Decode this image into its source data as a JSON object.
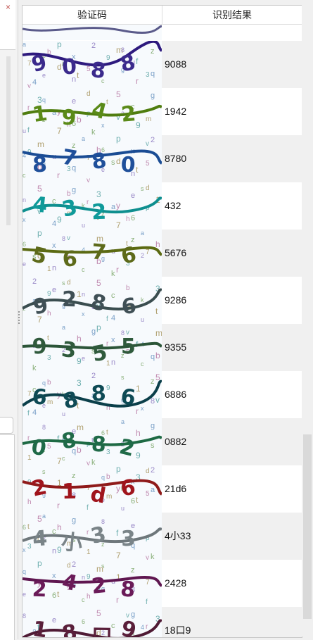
{
  "left_panel": {
    "close_glyph": "×"
  },
  "table": {
    "headers": {
      "captcha": "验证码",
      "result": "识别结果"
    },
    "rows": [
      {
        "result": "9088",
        "color": "#3b2a8c",
        "wave": "#2e1a7e"
      },
      {
        "result": "1942",
        "color": "#5a8a18",
        "wave": "#4f7d0f"
      },
      {
        "result": "8780",
        "color": "#1f4f9a",
        "wave": "#1a4c94"
      },
      {
        "result": "432",
        "color": "#0f9a9a",
        "wave": "#0e8f8f"
      },
      {
        "result": "5676",
        "color": "#5d6a1a",
        "wave": "#5b6a12"
      },
      {
        "result": "9286",
        "color": "#3f4f55",
        "wave": "#3a4d4f"
      },
      {
        "result": "9355",
        "color": "#2f5a3c",
        "wave": "#2b5538"
      },
      {
        "result": "6886",
        "color": "#0e4a55",
        "wave": "#0b3f4a"
      },
      {
        "result": "0882",
        "color": "#1f6a48",
        "wave": "#1e6a44"
      },
      {
        "result": "21d6",
        "color": "#a0141c",
        "wave": "#8f1a1a"
      },
      {
        "result": "4小33",
        "color": "#7a8488",
        "wave": "#6e777b"
      },
      {
        "result": "2428",
        "color": "#6a1a58",
        "wave": "#5f1650"
      },
      {
        "result": "18口9",
        "color": "#5a1f3a",
        "wave": "#4f1a34"
      }
    ]
  }
}
